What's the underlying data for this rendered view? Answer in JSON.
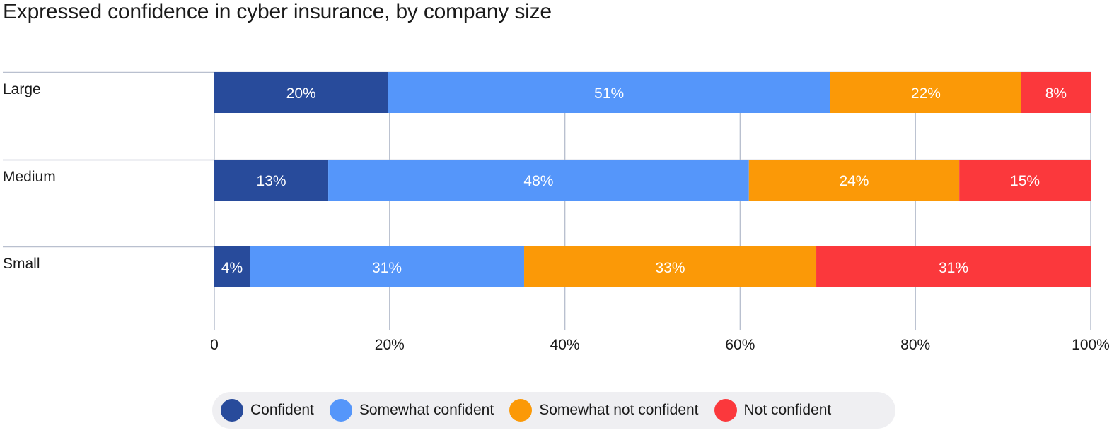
{
  "chart_data": {
    "type": "bar",
    "orientation": "horizontal",
    "stacked": true,
    "title": "Expressed confidence in cyber insurance, by company size",
    "categories": [
      "Large",
      "Medium",
      "Small"
    ],
    "series": [
      {
        "name": "Confident",
        "color": "#284b9b",
        "values": [
          20,
          13,
          4
        ],
        "labels": [
          "20%",
          "13%",
          "4%"
        ]
      },
      {
        "name": "Somewhat confident",
        "color": "#5596fa",
        "values": [
          51,
          48,
          31
        ],
        "labels": [
          "51%",
          "48%",
          "31%"
        ]
      },
      {
        "name": "Somewhat not confident",
        "color": "#fb9907",
        "values": [
          22,
          24,
          33
        ],
        "labels": [
          "22%",
          "24%",
          "33%"
        ]
      },
      {
        "name": "Not confident",
        "color": "#fb383c",
        "values": [
          8,
          15,
          31
        ],
        "labels": [
          "8%",
          "15%",
          "31%"
        ]
      }
    ],
    "x_ticks": [
      "0",
      "20%",
      "40%",
      "60%",
      "80%",
      "100%"
    ],
    "xlim": [
      0,
      100
    ],
    "grid": true,
    "legend_position": "bottom"
  }
}
